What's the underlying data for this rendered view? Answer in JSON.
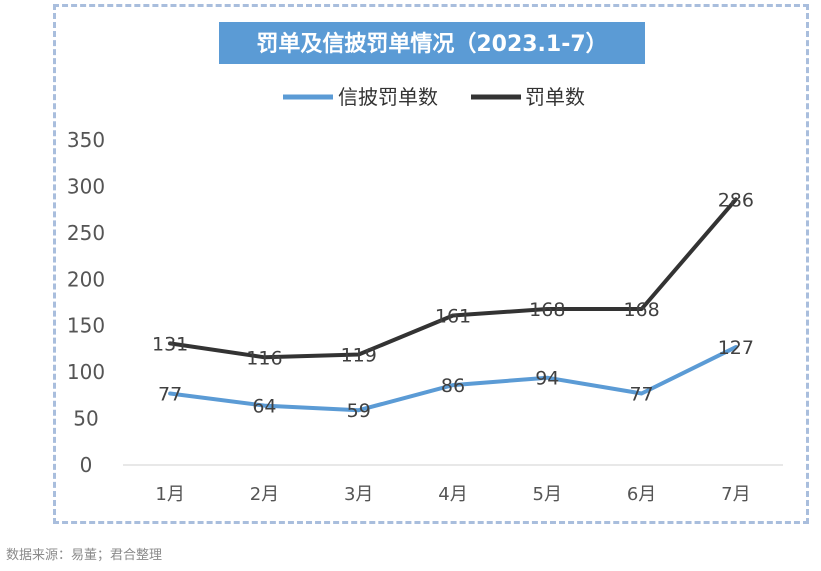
{
  "chart_data": {
    "type": "line",
    "title": "罚单及信披罚单情况（2023.1-7）",
    "categories": [
      "1月",
      "2月",
      "3月",
      "4月",
      "5月",
      "6月",
      "7月"
    ],
    "series": [
      {
        "name": "信披罚单数",
        "values": [
          77,
          64,
          59,
          86,
          94,
          77,
          127
        ],
        "color": "#5b9bd5"
      },
      {
        "name": "罚单数",
        "values": [
          131,
          116,
          119,
          161,
          168,
          168,
          286
        ],
        "color": "#333333"
      }
    ],
    "yticks": [
      "0",
      "50",
      "100",
      "150",
      "200",
      "250",
      "300",
      "350"
    ],
    "ylim": [
      0,
      350
    ],
    "xlabel": "",
    "ylabel": "",
    "grid": false,
    "legend": "top-center",
    "title_background": "#5b9bd5"
  },
  "footer": {
    "source": "数据来源：易董；君合整理"
  }
}
